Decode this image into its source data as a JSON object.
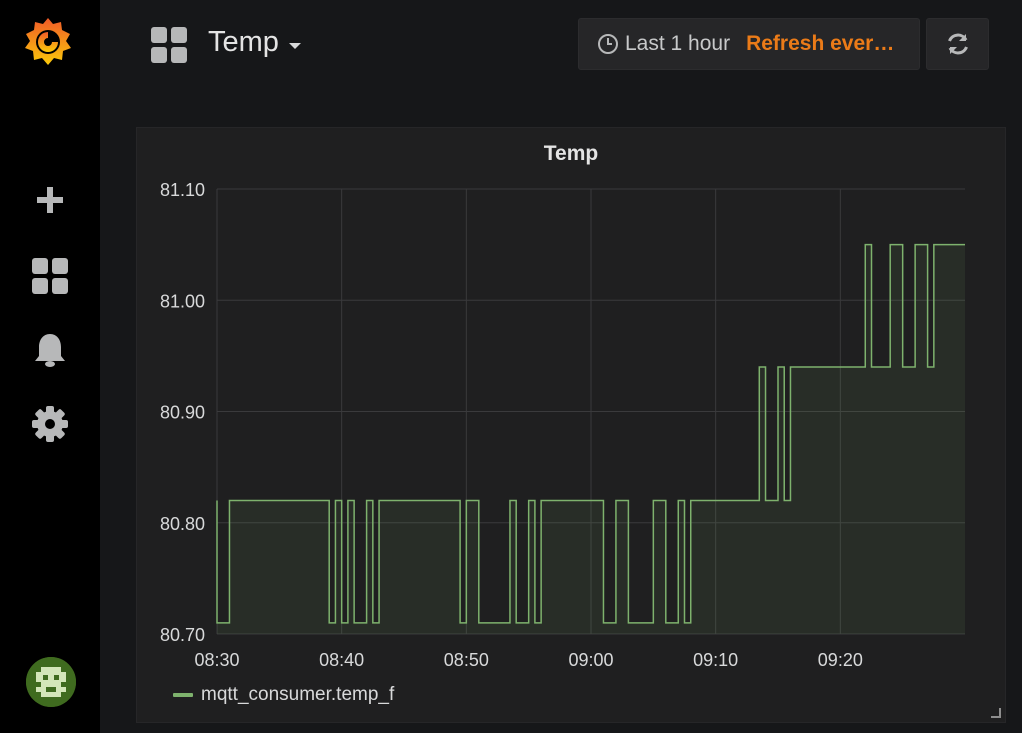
{
  "dashboard": {
    "title": "Temp"
  },
  "time_picker": {
    "range": "Last 1 hour",
    "refresh": "Refresh ever…"
  },
  "sidebar": {
    "items": [
      {
        "icon": "plus-icon"
      },
      {
        "icon": "dashboards-icon"
      },
      {
        "icon": "bell-icon"
      },
      {
        "icon": "gear-icon"
      }
    ]
  },
  "colors": {
    "series": "#7eb26d",
    "accent": "#eb7b18",
    "panel_bg": "#1f1f20"
  },
  "chart_data": {
    "type": "line",
    "title": "Temp",
    "xlabel": "",
    "ylabel": "",
    "x_tick_labels": [
      "08:30",
      "08:40",
      "08:50",
      "09:00",
      "09:10",
      "09:20"
    ],
    "y_tick_labels": [
      "80.70",
      "80.80",
      "80.90",
      "81.00",
      "81.10"
    ],
    "xlim": [
      "08:30",
      "09:30"
    ],
    "ylim": [
      80.7,
      81.1
    ],
    "grid": true,
    "fill": true,
    "legend_position": "bottom-left",
    "series": [
      {
        "name": "mqtt_consumer.temp_f",
        "color": "#7eb26d",
        "step": true,
        "points": [
          [
            "08:30",
            80.82
          ],
          [
            "08:30",
            80.71
          ],
          [
            "08:31",
            80.82
          ],
          [
            "08:39",
            80.82
          ],
          [
            "08:39",
            80.71
          ],
          [
            "08:39.5",
            80.82
          ],
          [
            "08:40",
            80.71
          ],
          [
            "08:40.5",
            80.82
          ],
          [
            "08:41",
            80.71
          ],
          [
            "08:42",
            80.82
          ],
          [
            "08:42.5",
            80.71
          ],
          [
            "08:43",
            80.82
          ],
          [
            "08:49",
            80.82
          ],
          [
            "08:49.5",
            80.71
          ],
          [
            "08:50",
            80.82
          ],
          [
            "08:50.5",
            80.82
          ],
          [
            "08:51",
            80.71
          ],
          [
            "08:53",
            80.71
          ],
          [
            "08:53.5",
            80.82
          ],
          [
            "08:54",
            80.71
          ],
          [
            "08:55",
            80.82
          ],
          [
            "08:55.5",
            80.71
          ],
          [
            "08:56",
            80.82
          ],
          [
            "09:00.5",
            80.82
          ],
          [
            "09:01",
            80.71
          ],
          [
            "09:02",
            80.82
          ],
          [
            "09:03",
            80.71
          ],
          [
            "09:04.5",
            80.71
          ],
          [
            "09:05",
            80.82
          ],
          [
            "09:06",
            80.71
          ],
          [
            "09:07",
            80.82
          ],
          [
            "09:07.5",
            80.71
          ],
          [
            "09:08",
            80.82
          ],
          [
            "09:13",
            80.82
          ],
          [
            "09:13.5",
            80.94
          ],
          [
            "09:14",
            80.82
          ],
          [
            "09:15",
            80.94
          ],
          [
            "09:15.5",
            80.82
          ],
          [
            "09:16",
            80.94
          ],
          [
            "09:21.5",
            80.94
          ],
          [
            "09:22",
            81.05
          ],
          [
            "09:22.5",
            80.94
          ],
          [
            "09:24",
            81.05
          ],
          [
            "09:25",
            80.94
          ],
          [
            "09:26",
            81.05
          ],
          [
            "09:27",
            80.94
          ],
          [
            "09:27.5",
            81.05
          ],
          [
            "09:30",
            81.05
          ]
        ]
      }
    ]
  }
}
